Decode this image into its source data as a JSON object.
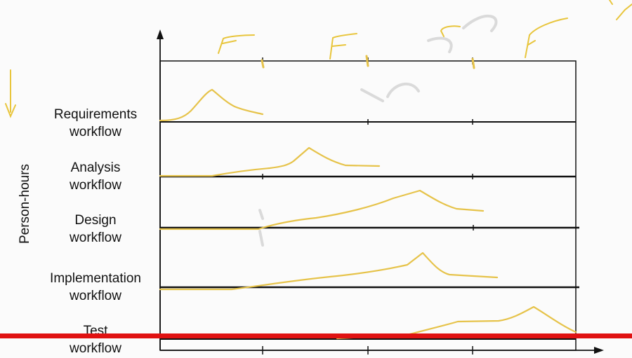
{
  "y_axis_label": "Person-hours",
  "workflows": [
    {
      "line1": "Requirements",
      "line2": "workflow"
    },
    {
      "line1": "Analysis",
      "line2": "workflow"
    },
    {
      "line1": "Design",
      "line2": "workflow"
    },
    {
      "line1": "Implementation",
      "line2": "workflow"
    },
    {
      "line1": "Test",
      "line2": "workflow"
    }
  ],
  "colors": {
    "curve": "#e6c34a",
    "ink": "#111111",
    "progress_bar": "#e01212",
    "background": "#fbfbfb"
  },
  "icons": [
    "pen-annotation-marks",
    "red-progress-bar"
  ]
}
